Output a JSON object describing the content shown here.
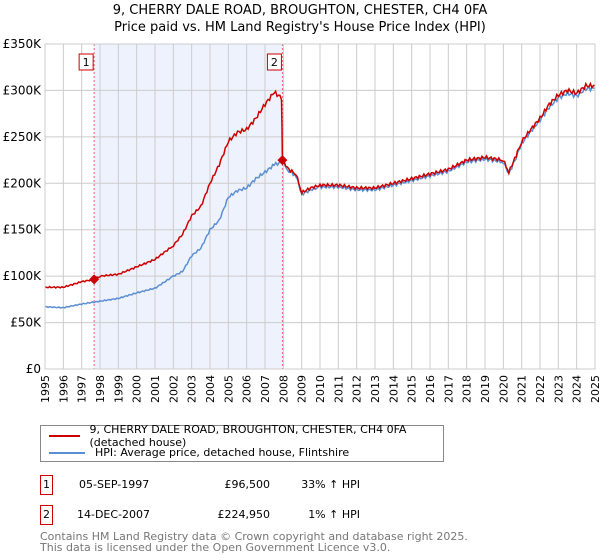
{
  "chart_data": {
    "type": "line",
    "title": "9, CHERRY DALE ROAD, BROUGHTON, CHESTER, CH4 0FA",
    "subtitle": "Price paid vs. HM Land Registry's House Price Index (HPI)",
    "xlim": [
      1995,
      2025
    ],
    "ylim": [
      0,
      350000
    ],
    "yticks": [
      {
        "v": 0,
        "label": "£0"
      },
      {
        "v": 50000,
        "label": "£50K"
      },
      {
        "v": 100000,
        "label": "£100K"
      },
      {
        "v": 150000,
        "label": "£150K"
      },
      {
        "v": 200000,
        "label": "£200K"
      },
      {
        "v": 250000,
        "label": "£250K"
      },
      {
        "v": 300000,
        "label": "£300K"
      },
      {
        "v": 350000,
        "label": "£350K"
      }
    ],
    "xticks": [
      "1995",
      "1996",
      "1997",
      "1998",
      "1999",
      "2000",
      "2001",
      "2002",
      "2003",
      "2004",
      "2005",
      "2006",
      "2007",
      "2008",
      "2009",
      "2010",
      "2011",
      "2012",
      "2013",
      "2014",
      "2015",
      "2016",
      "2017",
      "2018",
      "2019",
      "2020",
      "2021",
      "2022",
      "2023",
      "2024",
      "2025"
    ],
    "grid": true,
    "shaded_range": [
      1997.68,
      2007.95
    ],
    "series": [
      {
        "name": "9, CHERRY DALE ROAD, BROUGHTON, CHESTER, CH4 0FA (detached house)",
        "color": "#cc0000",
        "x": [
          1995,
          1996,
          1997,
          1997.68,
          1998,
          1999,
          2000,
          2001,
          2002,
          2002.5,
          2003,
          2003.5,
          2004,
          2004.5,
          2005,
          2005.5,
          2006,
          2006.5,
          2007,
          2007.5,
          2007.9,
          2007.95,
          2008.3,
          2008.7,
          2009,
          2009.5,
          2010,
          2011,
          2012,
          2013,
          2014,
          2015,
          2016,
          2017,
          2018,
          2019,
          2020,
          2020.3,
          2020.7,
          2021,
          2021.5,
          2022,
          2022.5,
          2023,
          2023.5,
          2024,
          2024.5,
          2025
        ],
        "y": [
          88000,
          88000,
          94000,
          96500,
          100000,
          102000,
          110000,
          118000,
          133000,
          145000,
          165000,
          175000,
          200000,
          220000,
          245000,
          255000,
          258000,
          270000,
          285000,
          298000,
          292000,
          224950,
          215000,
          210000,
          190000,
          195000,
          198000,
          198000,
          195000,
          195000,
          200000,
          205000,
          210000,
          215000,
          225000,
          228000,
          225000,
          212000,
          230000,
          245000,
          258000,
          270000,
          285000,
          295000,
          300000,
          297000,
          305000,
          305000
        ]
      },
      {
        "name": "HPI: Average price, detached house, Flintshire",
        "color": "#5b8fd4",
        "x": [
          1995,
          1996,
          1997,
          1998,
          1999,
          2000,
          2001,
          2002,
          2002.5,
          2003,
          2003.5,
          2004,
          2004.5,
          2005,
          2005.5,
          2006,
          2006.5,
          2007,
          2007.5,
          2007.95,
          2008.3,
          2008.7,
          2009,
          2009.5,
          2010,
          2011,
          2012,
          2013,
          2014,
          2015,
          2016,
          2017,
          2018,
          2019,
          2020,
          2020.3,
          2020.7,
          2021,
          2021.5,
          2022,
          2022.5,
          2023,
          2023.5,
          2024,
          2024.5,
          2025
        ],
        "y": [
          67000,
          66000,
          70000,
          73000,
          76000,
          82000,
          87000,
          100000,
          105000,
          122000,
          130000,
          150000,
          160000,
          185000,
          192000,
          195000,
          205000,
          212000,
          220000,
          223000,
          213000,
          208000,
          188000,
          193000,
          196000,
          196000,
          193000,
          193000,
          198000,
          203000,
          208000,
          213000,
          223000,
          226000,
          223000,
          210000,
          228000,
          243000,
          256000,
          268000,
          282000,
          292000,
          297000,
          294000,
          302000,
          302000
        ]
      }
    ],
    "sales": [
      {
        "label": "1",
        "x": 1997.68,
        "y": 96500
      },
      {
        "label": "2",
        "x": 2007.95,
        "y": 224950
      }
    ]
  },
  "legend": {
    "items": [
      "9, CHERRY DALE ROAD, BROUGHTON, CHESTER, CH4 0FA (detached house)",
      "HPI: Average price, detached house, Flintshire"
    ]
  },
  "transactions": [
    {
      "num": "1",
      "date": "05-SEP-1997",
      "price": "£96,500",
      "hpi": "33% ↑ HPI"
    },
    {
      "num": "2",
      "date": "14-DEC-2007",
      "price": "£224,950",
      "hpi": "1% ↑ HPI"
    }
  ],
  "footer": [
    "Contains HM Land Registry data © Crown copyright and database right 2025.",
    "This data is licensed under the Open Government Licence v3.0."
  ]
}
